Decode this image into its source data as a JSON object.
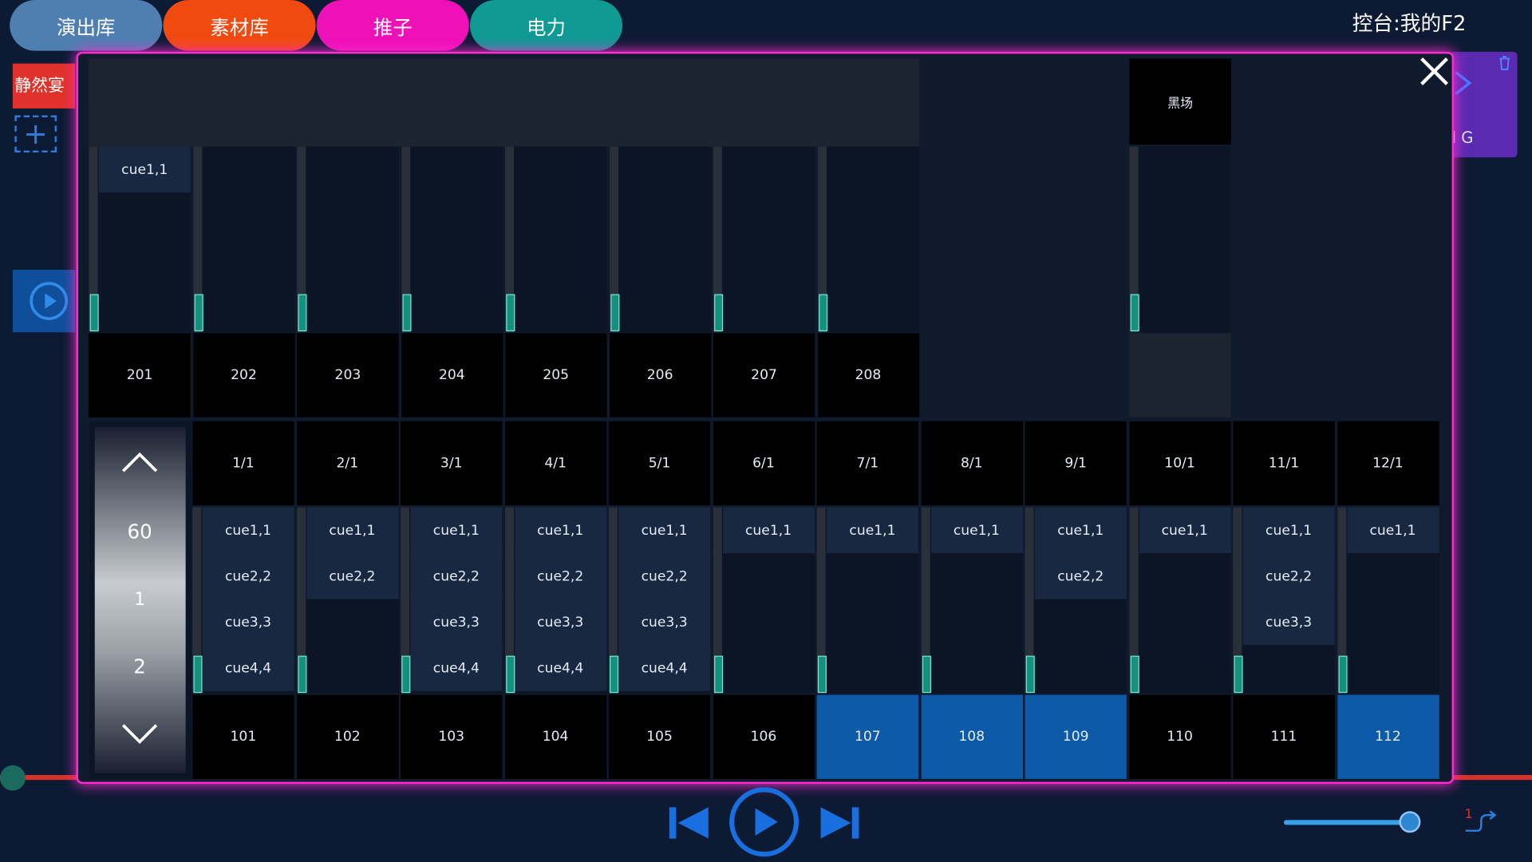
{
  "tabs": [
    "演出库",
    "素材库",
    "推子",
    "电力"
  ],
  "console_label": "控台:我的F2",
  "side_left": {
    "scene_button": "静然宴"
  },
  "side_right": {
    "label": "l G"
  },
  "top_faders": [
    {
      "cues": [
        "cue1,1"
      ],
      "label": "201"
    },
    {
      "cues": [],
      "label": "202"
    },
    {
      "cues": [],
      "label": "203"
    },
    {
      "cues": [],
      "label": "204"
    },
    {
      "cues": [],
      "label": "205"
    },
    {
      "cues": [],
      "label": "206"
    },
    {
      "cues": [],
      "label": "207"
    },
    {
      "cues": [],
      "label": "208"
    },
    {
      "title": "黑场",
      "cues": []
    }
  ],
  "scroll": [
    60,
    1,
    2
  ],
  "bottom_faders": [
    {
      "header": "1/1",
      "cues": [
        "cue1,1",
        "cue2,2",
        "cue3,3",
        "cue4,4"
      ],
      "label": "101",
      "active": false
    },
    {
      "header": "2/1",
      "cues": [
        "cue1,1",
        "cue2,2"
      ],
      "label": "102",
      "active": false
    },
    {
      "header": "3/1",
      "cues": [
        "cue1,1",
        "cue2,2",
        "cue3,3",
        "cue4,4"
      ],
      "label": "103",
      "active": false
    },
    {
      "header": "4/1",
      "cues": [
        "cue1,1",
        "cue2,2",
        "cue3,3",
        "cue4,4"
      ],
      "label": "104",
      "active": false
    },
    {
      "header": "5/1",
      "cues": [
        "cue1,1",
        "cue2,2",
        "cue3,3",
        "cue4,4"
      ],
      "label": "105",
      "active": false
    },
    {
      "header": "6/1",
      "cues": [
        "cue1,1"
      ],
      "label": "106",
      "active": false
    },
    {
      "header": "7/1",
      "cues": [
        "cue1,1"
      ],
      "label": "107",
      "active": true
    },
    {
      "header": "8/1",
      "cues": [
        "cue1,1"
      ],
      "label": "108",
      "active": true
    },
    {
      "header": "9/1",
      "cues": [
        "cue1,1",
        "cue2,2"
      ],
      "label": "109",
      "active": true
    },
    {
      "header": "10/1",
      "cues": [
        "cue1,1"
      ],
      "label": "110",
      "active": false
    },
    {
      "header": "11/1",
      "cues": [
        "cue1,1",
        "cue2,2",
        "cue3,3"
      ],
      "label": "111",
      "active": false
    },
    {
      "header": "12/1",
      "cues": [
        "cue1,1"
      ],
      "label": "112",
      "active": true
    }
  ],
  "loop_badge": "1"
}
